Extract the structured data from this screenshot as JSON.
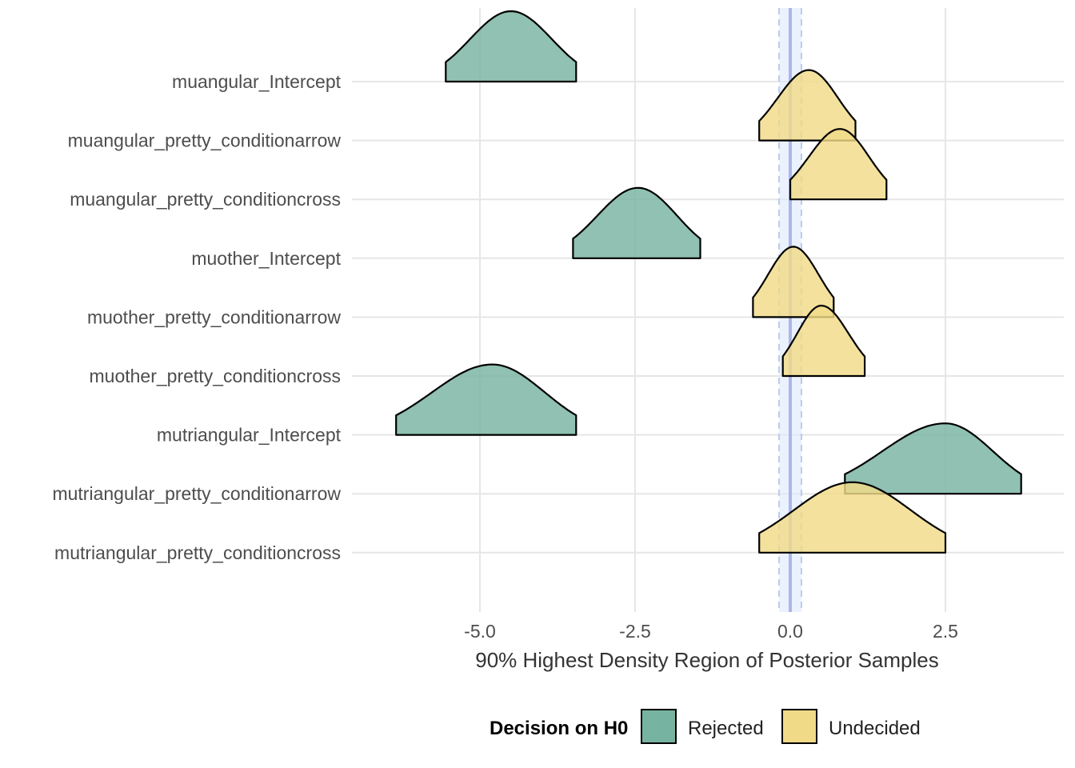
{
  "chart_data": {
    "type": "ridgeline",
    "x": {
      "label": "90% Highest Density Region of Posterior Samples",
      "range": [
        -7.7,
        4.2
      ],
      "ticks": [
        -5.0,
        -2.5,
        0.0,
        2.5
      ],
      "tick_labels": [
        "-5.0",
        "-2.5",
        "0.0",
        "2.5"
      ]
    },
    "reference": {
      "value": 0.0,
      "rope": [
        -0.18,
        0.18
      ],
      "line_color": "#a9b8e8",
      "rope_color": "#dde8fb",
      "rope_border_color": "#b8cdee"
    },
    "grid": true,
    "legend": {
      "title": "Decision on H0",
      "position": "bottom",
      "items": [
        {
          "label": "Rejected",
          "color": "#77b3a1"
        },
        {
          "label": "Undecided",
          "color": "#f0da88"
        }
      ]
    },
    "series": [
      {
        "name": "muangular_Intercept",
        "decision": "Rejected",
        "hdr": [
          -5.55,
          -3.45
        ],
        "mode": -4.5
      },
      {
        "name": "muangular_pretty_conditionarrow",
        "decision": "Undecided",
        "hdr": [
          -0.5,
          1.05
        ],
        "mode": 0.3
      },
      {
        "name": "muangular_pretty_conditioncross",
        "decision": "Undecided",
        "hdr": [
          0.0,
          1.55
        ],
        "mode": 0.8
      },
      {
        "name": "muother_Intercept",
        "decision": "Rejected",
        "hdr": [
          -3.5,
          -1.45
        ],
        "mode": -2.45
      },
      {
        "name": "muother_pretty_conditionarrow",
        "decision": "Undecided",
        "hdr": [
          -0.6,
          0.7
        ],
        "mode": 0.05
      },
      {
        "name": "muother_pretty_conditioncross",
        "decision": "Undecided",
        "hdr": [
          -0.12,
          1.2
        ],
        "mode": 0.5
      },
      {
        "name": "mutriangular_Intercept",
        "decision": "Rejected",
        "hdr": [
          -6.35,
          -3.45
        ],
        "mode": -4.8
      },
      {
        "name": "mutriangular_pretty_conditionarrow",
        "decision": "Rejected",
        "hdr": [
          0.88,
          3.72
        ],
        "mode": 2.5
      },
      {
        "name": "mutriangular_pretty_conditioncross",
        "decision": "Undecided",
        "hdr": [
          -0.5,
          2.5
        ],
        "mode": 1.0
      }
    ]
  }
}
